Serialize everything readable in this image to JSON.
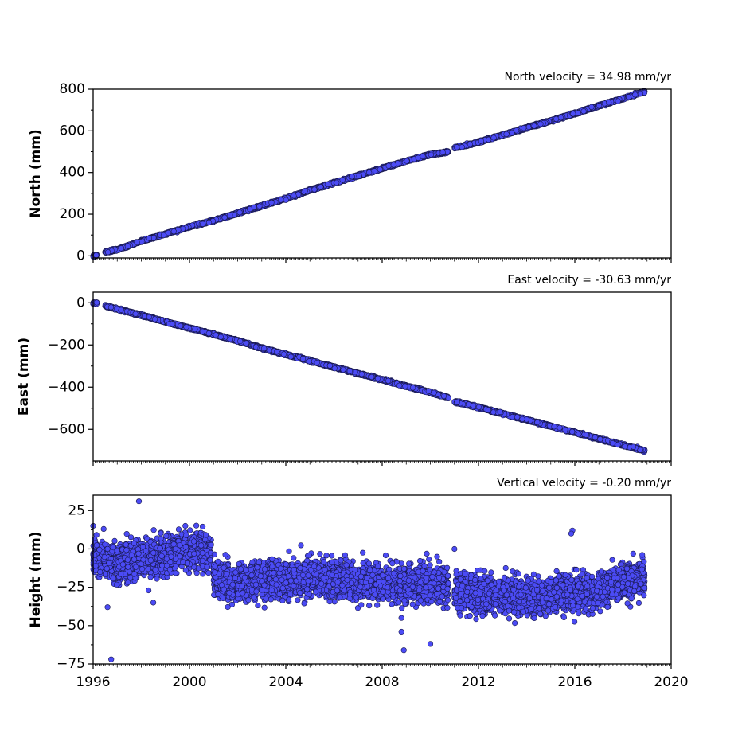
{
  "chart_data": [
    {
      "type": "scatter",
      "title": "North velocity = 34.98 mm/yr",
      "ylabel": "North (mm)",
      "xlim": [
        1996,
        2020
      ],
      "ylim": [
        -10,
        800
      ],
      "yticks": [
        0,
        200,
        400,
        600,
        800
      ],
      "marker_color": "#4b4bf5",
      "marker_edge": "#1a1a50",
      "series": [
        {
          "segments": [
            {
              "x": [
                1996.0,
                1996.15
              ],
              "y": [
                0,
                5
              ]
            },
            {
              "x": [
                1996.5,
                1997.0,
                1998.0,
                1999.0,
                2000.0,
                2001.0,
                2002.0,
                2003.0,
                2004.0,
                2005.0,
                2006.0,
                2007.0,
                2008.0,
                2009.0,
                2010.0,
                2010.75
              ],
              "y": [
                18,
                30,
                70,
                105,
                140,
                170,
                205,
                240,
                275,
                315,
                350,
                385,
                420,
                455,
                485,
                500
              ]
            },
            {
              "x": [
                2011.0,
                2012.0,
                2013.0,
                2014.0,
                2015.0,
                2016.0,
                2017.0,
                2018.0,
                2018.9
              ],
              "y": [
                518,
                545,
                580,
                615,
                648,
                683,
                720,
                755,
                788
              ]
            }
          ]
        }
      ]
    },
    {
      "type": "scatter",
      "title": "East velocity = -30.63 mm/yr",
      "ylabel": "East (mm)",
      "xlim": [
        1996,
        2020
      ],
      "ylim": [
        -750,
        50
      ],
      "yticks": [
        -600,
        -400,
        -200,
        0
      ],
      "marker_color": "#4b4bf5",
      "marker_edge": "#1a1a50",
      "series": [
        {
          "segments": [
            {
              "x": [
                1996.0,
                1996.15
              ],
              "y": [
                0,
                -2
              ]
            },
            {
              "x": [
                1996.5,
                1997.0,
                1998.0,
                1999.0,
                2000.0,
                2001.0,
                2002.0,
                2003.0,
                2004.0,
                2005.0,
                2006.0,
                2007.0,
                2008.0,
                2009.0,
                2010.0,
                2010.75
              ],
              "y": [
                -15,
                -30,
                -60,
                -90,
                -120,
                -150,
                -180,
                -215,
                -245,
                -275,
                -305,
                -335,
                -365,
                -395,
                -425,
                -450
              ]
            },
            {
              "x": [
                2011.0,
                2012.0,
                2013.0,
                2014.0,
                2015.0,
                2016.0,
                2017.0,
                2018.0,
                2018.9
              ],
              "y": [
                -470,
                -495,
                -525,
                -555,
                -585,
                -615,
                -645,
                -675,
                -700
              ]
            }
          ]
        }
      ]
    },
    {
      "type": "scatter",
      "title": "Vertical velocity = -0.20 mm/yr",
      "ylabel": "Height (mm)",
      "xlabel": "",
      "xlim": [
        1996,
        2020
      ],
      "ylim": [
        -75,
        35
      ],
      "yticks": [
        -75,
        -50,
        -25,
        0,
        25
      ],
      "xticks": [
        1996,
        2000,
        2004,
        2008,
        2012,
        2016,
        2020
      ],
      "marker_color": "#4b4bf5",
      "marker_edge": "#1a1a50",
      "series": [
        {
          "segments": [
            {
              "x": [
                1996.0,
                1996.5,
                1997.0,
                1997.5,
                1998.0,
                1998.5,
                1999.0,
                1999.5,
                2000.0,
                2000.5,
                2000.9
              ],
              "y": [
                -5,
                -8,
                -10,
                -8,
                -7,
                -6,
                -5,
                -3,
                -2,
                -1,
                -2
              ]
            },
            {
              "x": [
                2001.0,
                2002.0,
                2003.0,
                2004.0,
                2005.0,
                2006.0,
                2007.0,
                2008.0,
                2009.0,
                2010.0,
                2010.75
              ],
              "y": [
                -20,
                -22,
                -20,
                -21,
                -18,
                -20,
                -21,
                -22,
                -23,
                -22,
                -24
              ]
            },
            {
              "x": [
                2011.0,
                2012.0,
                2013.0,
                2014.0,
                2015.0,
                2016.0,
                2017.0,
                2018.0,
                2018.9
              ],
              "y": [
                -28,
                -30,
                -30,
                -32,
                -30,
                -28,
                -28,
                -22,
                -18
              ]
            }
          ],
          "outliers": {
            "x": [
              1996.0,
              1996.6,
              1996.75,
              1997.9,
              1998.5,
              1998.3,
              2010.0,
              2008.8,
              2008.8,
              2008.9,
              2011.0,
              2015.9,
              2015.85
            ],
            "y": [
              15,
              -38,
              -72,
              31,
              -35,
              -27,
              -62,
              -45,
              -54,
              -66,
              0,
              12,
              10
            ]
          }
        }
      ]
    }
  ]
}
